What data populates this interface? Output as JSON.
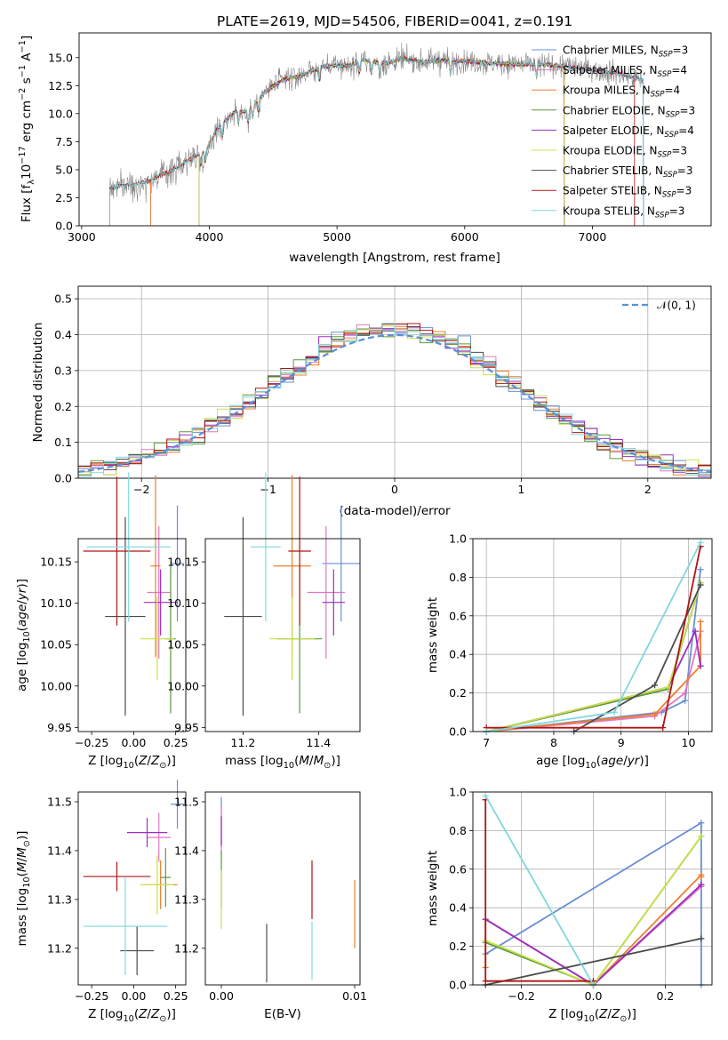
{
  "colors": {
    "Chabrier MILES": "#6a8fd8",
    "Salpeter MILES": "#e377c2",
    "Kroupa MILES": "#ee7f2e",
    "Chabrier ELODIE": "#5c9a3a",
    "Salpeter ELODIE": "#9a2fc0",
    "Kroupa ELODIE": "#c8e04a",
    "Chabrier STELIB": "#4d4d4d",
    "Salpeter STELIB": "#b01414",
    "Kroupa STELIB": "#7fd8de",
    "data": "#808080",
    "normal": "#5b8fd8"
  },
  "chart_data": [
    {
      "type": "line",
      "title": "PLATE=2619, MJD=54506, FIBERID=0041, z=0.191",
      "xlabel": "wavelength [Angstrom, rest frame]",
      "ylabel": "Flux [fλ10⁻¹⁷ erg cm⁻² s⁻¹ A⁻¹]",
      "xlim": [
        2980,
        7930
      ],
      "ylim": [
        0,
        17.2
      ],
      "xticks": [
        3000,
        4000,
        5000,
        6000,
        7000
      ],
      "yticks": [
        0.0,
        2.5,
        5.0,
        7.5,
        10.0,
        12.5,
        15.0
      ],
      "legend_position": "top-right",
      "legend": [
        {
          "name": "Chabrier MILES",
          "nssp": 3
        },
        {
          "name": "Salpeter MILES",
          "nssp": 4
        },
        {
          "name": "Kroupa MILES",
          "nssp": 4
        },
        {
          "name": "Chabrier ELODIE",
          "nssp": 3
        },
        {
          "name": "Salpeter ELODIE",
          "nssp": 4
        },
        {
          "name": "Kroupa ELODIE",
          "nssp": 3
        },
        {
          "name": "Chabrier STELIB",
          "nssp": 3
        },
        {
          "name": "Salpeter STELIB",
          "nssp": 3
        },
        {
          "name": "Kroupa STELIB",
          "nssp": 3
        }
      ],
      "legend_prefix": "N",
      "legend_sub": "SSP",
      "continuum": {
        "x": [
          3220,
          3300,
          3400,
          3500,
          3600,
          3700,
          3800,
          3900,
          3960,
          4000,
          4050,
          4100,
          4200,
          4300,
          4400,
          4500,
          4600,
          4700,
          4800,
          4900,
          5000,
          5100,
          5200,
          5300,
          5400,
          5500,
          5600,
          5700,
          5800,
          5900,
          6000,
          6200,
          6400,
          6600,
          6800,
          7000,
          7200,
          7400
        ],
        "y": [
          3.3,
          3.6,
          3.7,
          3.9,
          4.4,
          4.9,
          5.6,
          6.3,
          6.6,
          7.3,
          8.4,
          9.1,
          10.2,
          10.2,
          11.5,
          12.5,
          13.1,
          13.3,
          13.8,
          14.2,
          14.3,
          14.3,
          14.8,
          14.6,
          14.5,
          14.9,
          14.7,
          14.6,
          14.8,
          14.6,
          14.7,
          14.5,
          14.4,
          14.4,
          14.2,
          13.9,
          13.6,
          13.0
        ]
      },
      "model_start_x": {
        "Chabrier MILES": 3540,
        "Salpeter MILES": 3540,
        "Kroupa MILES": 3540,
        "Chabrier ELODIE": 3920,
        "Salpeter ELODIE": 3920,
        "Kroupa ELODIE": 3920,
        "Chabrier STELIB": 3220,
        "Salpeter STELIB": 3220,
        "Kroupa STELIB": 3220
      },
      "model_end_x": {
        "Chabrier MILES": 7400,
        "Salpeter MILES": 7400,
        "Kroupa MILES": 6780,
        "Chabrier ELODIE": 6780,
        "Salpeter ELODIE": 6780,
        "Kroupa ELODIE": 6780,
        "Chabrier STELIB": 7400,
        "Salpeter STELIB": 7330,
        "Kroupa STELIB": 7400
      }
    },
    {
      "type": "histogram",
      "xlabel": "(data-model)/error",
      "ylabel": "Normed distribution",
      "xlim": [
        -2.5,
        2.5
      ],
      "ylim": [
        0,
        0.535
      ],
      "xticks": [
        -2,
        -1,
        0,
        1,
        2
      ],
      "yticks": [
        0.0,
        0.1,
        0.2,
        0.3,
        0.4,
        0.5
      ],
      "grid": true,
      "bin_width": 0.1,
      "legend": "𝒩(0, 1)",
      "legend_position": "top-right",
      "reference": "normal pdf, mean 0, sigma 1"
    },
    {
      "type": "errorbar",
      "xlabel": "Z [log₁₀(Z/Z⊙)]",
      "ylabel": "age  [log₁₀(age/yr)]",
      "xlim": [
        -0.33,
        0.31
      ],
      "ylim": [
        9.945,
        10.178
      ],
      "xticks": [
        -0.25,
        0.0,
        0.25
      ],
      "yticks": [
        9.95,
        10.0,
        10.05,
        10.1,
        10.15
      ],
      "points": [
        {
          "s": "Chabrier MILES",
          "x": 0.26,
          "y": 10.148,
          "xe": 0.04,
          "ye": 0.07
        },
        {
          "s": "Salpeter MILES",
          "x": 0.15,
          "y": 10.113,
          "xe": 0.07,
          "ye": 0.08
        },
        {
          "s": "Kroupa MILES",
          "x": 0.13,
          "y": 10.145,
          "xe": 0.03,
          "ye": 0.11
        },
        {
          "s": "Chabrier ELODIE",
          "x": 0.22,
          "y": 10.057,
          "xe": 0.03,
          "ye": 0.09
        },
        {
          "s": "Salpeter ELODIE",
          "x": 0.16,
          "y": 10.101,
          "xe": 0.1,
          "ye": 0.04
        },
        {
          "s": "Kroupa ELODIE",
          "x": 0.14,
          "y": 10.057,
          "xe": 0.1,
          "ye": 0.05
        },
        {
          "s": "Chabrier STELIB",
          "x": -0.05,
          "y": 10.084,
          "xe": 0.12,
          "ye": 0.12
        },
        {
          "s": "Salpeter STELIB",
          "x": -0.1,
          "y": 10.163,
          "xe": 0.2,
          "ye": 0.09
        },
        {
          "s": "Kroupa STELIB",
          "x": -0.03,
          "y": 10.168,
          "xe": 0.25,
          "ye": 0.09
        }
      ]
    },
    {
      "type": "errorbar",
      "xlabel": "mass [log₁₀(M/M⊙)]",
      "ylabel": "",
      "xlim": [
        11.1,
        11.51
      ],
      "ylim": [
        9.945,
        10.178
      ],
      "xticks": [
        11.2,
        11.4
      ],
      "yticks": [
        9.95,
        10.0,
        10.05,
        10.1,
        10.15
      ],
      "points": [
        {
          "s": "Chabrier MILES",
          "x": 11.46,
          "y": 10.148,
          "xe": 0.05,
          "ye": 0.07
        },
        {
          "s": "Salpeter MILES",
          "x": 11.42,
          "y": 10.113,
          "xe": 0.05,
          "ye": 0.08
        },
        {
          "s": "Kroupa MILES",
          "x": 11.33,
          "y": 10.145,
          "xe": 0.05,
          "ye": 0.11
        },
        {
          "s": "Chabrier ELODIE",
          "x": 11.35,
          "y": 10.057,
          "xe": 0.06,
          "ye": 0.09
        },
        {
          "s": "Salpeter ELODIE",
          "x": 11.44,
          "y": 10.101,
          "xe": 0.03,
          "ye": 0.04
        },
        {
          "s": "Kroupa ELODIE",
          "x": 11.33,
          "y": 10.057,
          "xe": 0.06,
          "ye": 0.05
        },
        {
          "s": "Chabrier STELIB",
          "x": 11.2,
          "y": 10.084,
          "xe": 0.05,
          "ye": 0.12
        },
        {
          "s": "Salpeter STELIB",
          "x": 11.35,
          "y": 10.163,
          "xe": 0.03,
          "ye": 0.09
        },
        {
          "s": "Kroupa STELIB",
          "x": 11.26,
          "y": 10.168,
          "xe": 0.04,
          "ye": 0.09
        }
      ]
    },
    {
      "type": "line",
      "xlabel": "age  [log₁₀(age/yr)]",
      "ylabel": "mass weight",
      "xlim": [
        6.8,
        10.35
      ],
      "ylim": [
        0,
        1.0
      ],
      "xticks": [
        7,
        8,
        9,
        10
      ],
      "yticks": [
        0.0,
        0.2,
        0.4,
        0.6,
        0.8,
        1.0
      ],
      "grid": true,
      "series": [
        {
          "s": "Chabrier MILES",
          "x": [
            7.0,
            9.6,
            9.95,
            10.18
          ],
          "y": [
            0.0,
            0.1,
            0.16,
            0.84
          ]
        },
        {
          "s": "Salpeter MILES",
          "x": [
            7.0,
            9.5,
            9.95,
            10.18
          ],
          "y": [
            0.0,
            0.08,
            0.2,
            0.52
          ]
        },
        {
          "s": "Kroupa MILES",
          "x": [
            7.0,
            9.5,
            10.18,
            10.18
          ],
          "y": [
            0.0,
            0.09,
            0.34,
            0.57
          ]
        },
        {
          "s": "Chabrier ELODIE",
          "x": [
            7.0,
            9.7,
            10.18
          ],
          "y": [
            0.0,
            0.22,
            0.77
          ]
        },
        {
          "s": "Salpeter ELODIE",
          "x": [
            7.0,
            9.7,
            10.1,
            10.18
          ],
          "y": [
            0.0,
            0.23,
            0.52,
            0.34
          ]
        },
        {
          "s": "Kroupa ELODIE",
          "x": [
            7.0,
            9.7,
            10.18
          ],
          "y": [
            0.0,
            0.23,
            0.77
          ]
        },
        {
          "s": "Chabrier STELIB",
          "x": [
            8.3,
            9.5,
            10.18
          ],
          "y": [
            0.0,
            0.24,
            0.76
          ]
        },
        {
          "s": "Salpeter STELIB",
          "x": [
            7.0,
            9.62,
            10.18
          ],
          "y": [
            0.02,
            0.02,
            0.96
          ]
        },
        {
          "s": "Kroupa STELIB",
          "x": [
            7.0,
            8.9,
            10.18
          ],
          "y": [
            0.0,
            0.1,
            0.98
          ]
        }
      ]
    },
    {
      "type": "errorbar",
      "xlabel": "Z [log₁₀(Z/Z⊙)]",
      "ylabel": "mass [log₁₀(M/M⊙)]",
      "xlim": [
        -0.33,
        0.31
      ],
      "ylim": [
        11.125,
        11.52
      ],
      "xticks": [
        -0.25,
        0.0,
        0.25
      ],
      "yticks": [
        11.2,
        11.3,
        11.4,
        11.5
      ],
      "points": [
        {
          "s": "Chabrier MILES",
          "x": 0.26,
          "y": 11.495,
          "xe": 0.04,
          "ye": 0.05
        },
        {
          "s": "Salpeter MILES",
          "x": 0.15,
          "y": 11.427,
          "xe": 0.07,
          "ye": 0.05
        },
        {
          "s": "Kroupa MILES",
          "x": 0.16,
          "y": 11.33,
          "xe": 0.1,
          "ye": 0.05
        },
        {
          "s": "Chabrier ELODIE",
          "x": 0.19,
          "y": 11.345,
          "xe": 0.03,
          "ye": 0.06
        },
        {
          "s": "Salpeter ELODIE",
          "x": 0.08,
          "y": 11.437,
          "xe": 0.12,
          "ye": 0.03
        },
        {
          "s": "Kroupa ELODIE",
          "x": 0.14,
          "y": 11.33,
          "xe": 0.1,
          "ye": 0.06
        },
        {
          "s": "Chabrier STELIB",
          "x": 0.02,
          "y": 11.195,
          "xe": 0.1,
          "ye": 0.05
        },
        {
          "s": "Salpeter STELIB",
          "x": -0.1,
          "y": 11.347,
          "xe": 0.2,
          "ye": 0.03
        },
        {
          "s": "Kroupa STELIB",
          "x": -0.05,
          "y": 11.245,
          "xe": 0.25,
          "ye": 0.1
        }
      ]
    },
    {
      "type": "errorbar",
      "xlabel": "E(B-V)",
      "ylabel": "",
      "xlim": [
        -0.0012,
        0.0104
      ],
      "ylim": [
        11.125,
        11.52
      ],
      "xticks": [
        0.0,
        0.01
      ],
      "yticks": [
        11.2,
        11.3,
        11.4,
        11.5
      ],
      "points": [
        {
          "s": "Chabrier MILES",
          "x": 0.0,
          "y": 11.46,
          "xe": 0,
          "ye": 0.05
        },
        {
          "s": "Salpeter MILES",
          "x": 0.0,
          "y": 11.44,
          "xe": 0,
          "ye": 0.05
        },
        {
          "s": "Kroupa MILES",
          "x": 0.01,
          "y": 11.27,
          "xe": 0,
          "ye": 0.07
        },
        {
          "s": "Chabrier ELODIE",
          "x": 0.0,
          "y": 11.34,
          "xe": 0,
          "ye": 0.06
        },
        {
          "s": "Salpeter ELODIE",
          "x": 0.0,
          "y": 11.44,
          "xe": 0,
          "ye": 0.03
        },
        {
          "s": "Kroupa ELODIE",
          "x": 0.0,
          "y": 11.3,
          "xe": 0,
          "ye": 0.06
        },
        {
          "s": "Chabrier STELIB",
          "x": 0.0034,
          "y": 11.19,
          "xe": 0,
          "ye": 0.06
        },
        {
          "s": "Salpeter STELIB",
          "x": 0.0068,
          "y": 11.32,
          "xe": 0,
          "ye": 0.06
        },
        {
          "s": "Kroupa STELIB",
          "x": 0.0068,
          "y": 11.195,
          "xe": 0,
          "ye": 0.06
        }
      ]
    },
    {
      "type": "line",
      "xlabel": "Z [log₁₀(Z/Z⊙)]",
      "ylabel": "mass weight",
      "xlim": [
        -0.335,
        0.33
      ],
      "ylim": [
        0,
        1.0
      ],
      "xticks": [
        -0.2,
        0.0,
        0.2
      ],
      "yticks": [
        0.0,
        0.2,
        0.4,
        0.6,
        0.8,
        1.0
      ],
      "grid": true,
      "series": [
        {
          "s": "Chabrier MILES",
          "x": [
            -0.3,
            0.3,
            0.3
          ],
          "y": [
            0.16,
            0.84,
            0.0
          ]
        },
        {
          "s": "Salpeter MILES",
          "x": [
            -0.3,
            0.0,
            0.3,
            0.3
          ],
          "y": [
            0.34,
            0.0,
            0.51,
            0.52
          ]
        },
        {
          "s": "Kroupa MILES",
          "x": [
            -0.3,
            -0.3,
            0.0,
            0.3,
            0.3
          ],
          "y": [
            0.09,
            0.34,
            0.0,
            0.57,
            0.56
          ]
        },
        {
          "s": "Chabrier ELODIE",
          "x": [
            -0.3,
            0.0,
            0.3
          ],
          "y": [
            0.22,
            0.0,
            0.77
          ]
        },
        {
          "s": "Salpeter ELODIE",
          "x": [
            -0.3,
            0.0,
            0.3,
            0.3
          ],
          "y": [
            0.34,
            0.0,
            0.52,
            0.52
          ]
        },
        {
          "s": "Kroupa ELODIE",
          "x": [
            -0.3,
            0.0,
            0.3
          ],
          "y": [
            0.23,
            0.0,
            0.77
          ]
        },
        {
          "s": "Chabrier STELIB",
          "x": [
            -0.3,
            0.3
          ],
          "y": [
            0.0,
            0.24
          ]
        },
        {
          "s": "Salpeter STELIB",
          "x": [
            -0.3,
            -0.3,
            0.0,
            0.0
          ],
          "y": [
            0.96,
            0.02,
            0.02,
            0.0
          ]
        },
        {
          "s": "Kroupa STELIB",
          "x": [
            -0.3,
            0.0,
            0.0
          ],
          "y": [
            0.98,
            0.0,
            0.0
          ]
        }
      ]
    }
  ]
}
